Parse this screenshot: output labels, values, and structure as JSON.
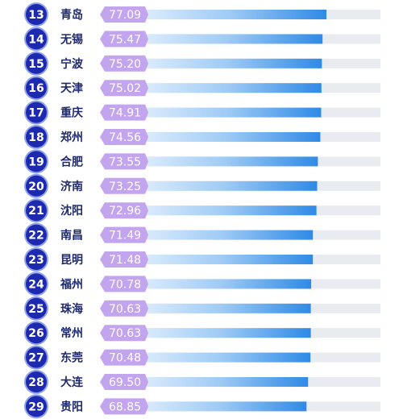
{
  "chart_data": {
    "type": "bar",
    "orientation": "horizontal",
    "title": "",
    "xlabel": "",
    "ylabel": "",
    "xlim": [
      0,
      100
    ],
    "grid": false,
    "legend": "none",
    "categories": [
      "青岛",
      "无锡",
      "宁波",
      "天津",
      "重庆",
      "郑州",
      "合肥",
      "济南",
      "沈阳",
      "南昌",
      "昆明",
      "福州",
      "珠海",
      "常州",
      "东莞",
      "大连",
      "贵阳"
    ],
    "ranks": [
      "13",
      "14",
      "15",
      "16",
      "17",
      "18",
      "19",
      "20",
      "21",
      "22",
      "23",
      "24",
      "25",
      "26",
      "27",
      "28",
      "29"
    ],
    "values": [
      77.09,
      75.47,
      75.2,
      75.02,
      74.91,
      74.56,
      73.55,
      73.25,
      72.96,
      71.49,
      71.48,
      70.78,
      70.63,
      70.63,
      70.48,
      69.5,
      68.85
    ],
    "value_labels": [
      "77.09",
      "75.47",
      "75.20",
      "75.02",
      "74.91",
      "74.56",
      "73.55",
      "73.25",
      "72.96",
      "71.49",
      "71.48",
      "70.78",
      "70.63",
      "70.63",
      "70.48",
      "69.50",
      "68.85"
    ]
  },
  "colors": {
    "rank_badge": "#1d2ab0",
    "rank_badge_ring": "#8fa2ea",
    "city_text": "#1f2a6b",
    "value_tag": "#c3a4ee",
    "value_tag_text": "#ffffff",
    "bar_start": "#f4f9ff",
    "bar_end": "#2f8ae6",
    "track": "#e8ebf0"
  }
}
